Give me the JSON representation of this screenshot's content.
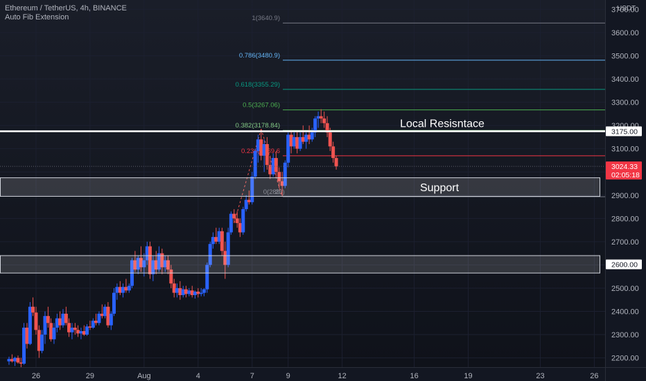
{
  "header": {
    "symbol_line": "Ethereum / TetherUS, 4h, BINANCE",
    "indicator": "Auto Fib Extension",
    "currency": "USDT"
  },
  "colors": {
    "background": "#131722",
    "bull": "#2962ff",
    "bear": "#ef5350",
    "grid": "#1c2030",
    "axis_text": "#b2b5be"
  },
  "chart_data": {
    "type": "candlestick",
    "title": "Ethereum / TetherUS, 4h, BINANCE",
    "y_axis": {
      "ticks": [
        2200,
        2300,
        2400,
        2500,
        2600,
        2700,
        2800,
        2900,
        3000,
        3100,
        3200,
        3300,
        3400,
        3500,
        3600,
        3700
      ],
      "tick_labels": [
        "2200.00",
        "2300.00",
        "2400.00",
        "2500.00",
        "2600.00",
        "2700.00",
        "2800.00",
        "2900.00",
        "3000.00",
        "3100.00",
        "3200.00",
        "3300.00",
        "3400.00",
        "3500.00",
        "3600.00",
        "3700.00"
      ],
      "range": [
        2160,
        3740
      ],
      "side": "right"
    },
    "x_axis": {
      "tick_labels": [
        "26",
        "29",
        "Aug",
        "4",
        "7",
        "9",
        "12",
        "16",
        "19",
        "23",
        "26"
      ],
      "tick_days": [
        -6,
        -3,
        0,
        3,
        6,
        8,
        11,
        15,
        18,
        22,
        25
      ],
      "range_days": [
        -8.0,
        25.6
      ]
    },
    "fib_levels": [
      {
        "label": "1(3640.9)",
        "ratio": 1,
        "value": 3640.9,
        "color": "#787b86"
      },
      {
        "label": "0.786(3480.9)",
        "ratio": 0.786,
        "value": 3480.9,
        "color": "#64b5f6"
      },
      {
        "label": "0.618(3355.29)",
        "ratio": 0.618,
        "value": 3355.29,
        "color": "#089981"
      },
      {
        "label": "0.5(3267.06)",
        "ratio": 0.5,
        "value": 3267.06,
        "color": "#4caf50"
      },
      {
        "label": "0.382(3178.84)",
        "ratio": 0.382,
        "value": 3178.84,
        "color": "#81c784"
      },
      {
        "label": "0.236(3069.6",
        "ratio": 0.236,
        "value": 3069.6,
        "color": "#f23645"
      },
      {
        "label": "0(289",
        "label_tail": "23)",
        "ratio": 0,
        "value": 2893.23,
        "color": "#787b86"
      }
    ],
    "annotations": [
      {
        "type": "hline",
        "value": 3175,
        "label": "Local Resisntace",
        "axis_label": "3175.00",
        "color": "#ffffff"
      },
      {
        "type": "zone",
        "low": 2895,
        "high": 2975,
        "label": "Support",
        "color": "#ffffff"
      },
      {
        "type": "zone",
        "low": 2565,
        "high": 2640,
        "label": "",
        "axis_label": "2600.00",
        "color": "#ffffff"
      }
    ],
    "last_price": {
      "value": 3024.33,
      "label": "3024.33",
      "countdown": "02:05:18",
      "color": "#f23645"
    },
    "candles": [
      {
        "t": -7.5,
        "o": 2185,
        "h": 2205,
        "l": 2170,
        "c": 2195
      },
      {
        "t": -7.33,
        "o": 2195,
        "h": 2215,
        "l": 2180,
        "c": 2185
      },
      {
        "t": -7.17,
        "o": 2185,
        "h": 2205,
        "l": 2165,
        "c": 2200
      },
      {
        "t": -7.0,
        "o": 2200,
        "h": 2210,
        "l": 2175,
        "c": 2180
      },
      {
        "t": -6.83,
        "o": 2180,
        "h": 2200,
        "l": 2160,
        "c": 2175
      },
      {
        "t": -6.67,
        "o": 2175,
        "h": 2350,
        "l": 2170,
        "c": 2330
      },
      {
        "t": -6.5,
        "o": 2330,
        "h": 2350,
        "l": 2240,
        "c": 2260
      },
      {
        "t": -6.33,
        "o": 2260,
        "h": 2440,
        "l": 2255,
        "c": 2420
      },
      {
        "t": -6.17,
        "o": 2420,
        "h": 2460,
        "l": 2380,
        "c": 2395
      },
      {
        "t": -6.0,
        "o": 2395,
        "h": 2420,
        "l": 2300,
        "c": 2320
      },
      {
        "t": -5.83,
        "o": 2320,
        "h": 2340,
        "l": 2200,
        "c": 2230
      },
      {
        "t": -5.67,
        "o": 2230,
        "h": 2320,
        "l": 2220,
        "c": 2300
      },
      {
        "t": -5.5,
        "o": 2300,
        "h": 2400,
        "l": 2260,
        "c": 2380
      },
      {
        "t": -5.33,
        "o": 2380,
        "h": 2420,
        "l": 2330,
        "c": 2350
      },
      {
        "t": -5.17,
        "o": 2350,
        "h": 2370,
        "l": 2270,
        "c": 2280
      },
      {
        "t": -5.0,
        "o": 2280,
        "h": 2350,
        "l": 2260,
        "c": 2330
      },
      {
        "t": -4.83,
        "o": 2330,
        "h": 2390,
        "l": 2310,
        "c": 2370
      },
      {
        "t": -4.67,
        "o": 2370,
        "h": 2400,
        "l": 2320,
        "c": 2340
      },
      {
        "t": -4.5,
        "o": 2340,
        "h": 2410,
        "l": 2330,
        "c": 2390
      },
      {
        "t": -4.33,
        "o": 2390,
        "h": 2420,
        "l": 2340,
        "c": 2350
      },
      {
        "t": -4.17,
        "o": 2350,
        "h": 2370,
        "l": 2290,
        "c": 2310
      },
      {
        "t": -4.0,
        "o": 2310,
        "h": 2350,
        "l": 2280,
        "c": 2330
      },
      {
        "t": -3.83,
        "o": 2330,
        "h": 2350,
        "l": 2300,
        "c": 2320
      },
      {
        "t": -3.67,
        "o": 2320,
        "h": 2340,
        "l": 2290,
        "c": 2305
      },
      {
        "t": -3.5,
        "o": 2305,
        "h": 2330,
        "l": 2280,
        "c": 2315
      },
      {
        "t": -3.33,
        "o": 2315,
        "h": 2340,
        "l": 2295,
        "c": 2300
      },
      {
        "t": -3.17,
        "o": 2300,
        "h": 2345,
        "l": 2295,
        "c": 2335
      },
      {
        "t": -3.0,
        "o": 2335,
        "h": 2360,
        "l": 2320,
        "c": 2330
      },
      {
        "t": -2.83,
        "o": 2330,
        "h": 2370,
        "l": 2325,
        "c": 2360
      },
      {
        "t": -2.67,
        "o": 2360,
        "h": 2390,
        "l": 2340,
        "c": 2350
      },
      {
        "t": -2.5,
        "o": 2350,
        "h": 2400,
        "l": 2340,
        "c": 2390
      },
      {
        "t": -2.33,
        "o": 2390,
        "h": 2430,
        "l": 2370,
        "c": 2380
      },
      {
        "t": -2.17,
        "o": 2380,
        "h": 2430,
        "l": 2370,
        "c": 2420
      },
      {
        "t": -2.0,
        "o": 2420,
        "h": 2440,
        "l": 2330,
        "c": 2340
      },
      {
        "t": -1.83,
        "o": 2340,
        "h": 2400,
        "l": 2320,
        "c": 2390
      },
      {
        "t": -1.67,
        "o": 2390,
        "h": 2500,
        "l": 2380,
        "c": 2480
      },
      {
        "t": -1.5,
        "o": 2480,
        "h": 2520,
        "l": 2450,
        "c": 2505
      },
      {
        "t": -1.33,
        "o": 2505,
        "h": 2530,
        "l": 2470,
        "c": 2480
      },
      {
        "t": -1.17,
        "o": 2480,
        "h": 2520,
        "l": 2460,
        "c": 2505
      },
      {
        "t": -1.0,
        "o": 2505,
        "h": 2540,
        "l": 2480,
        "c": 2490
      },
      {
        "t": -0.83,
        "o": 2490,
        "h": 2520,
        "l": 2480,
        "c": 2510
      },
      {
        "t": -0.67,
        "o": 2510,
        "h": 2630,
        "l": 2500,
        "c": 2620
      },
      {
        "t": -0.5,
        "o": 2620,
        "h": 2660,
        "l": 2570,
        "c": 2580
      },
      {
        "t": -0.33,
        "o": 2580,
        "h": 2640,
        "l": 2560,
        "c": 2630
      },
      {
        "t": -0.17,
        "o": 2630,
        "h": 2680,
        "l": 2570,
        "c": 2590
      },
      {
        "t": 0.0,
        "o": 2590,
        "h": 2650,
        "l": 2550,
        "c": 2620
      },
      {
        "t": 0.17,
        "o": 2620,
        "h": 2700,
        "l": 2600,
        "c": 2680
      },
      {
        "t": 0.33,
        "o": 2680,
        "h": 2700,
        "l": 2540,
        "c": 2560
      },
      {
        "t": 0.5,
        "o": 2560,
        "h": 2640,
        "l": 2530,
        "c": 2620
      },
      {
        "t": 0.67,
        "o": 2620,
        "h": 2660,
        "l": 2560,
        "c": 2580
      },
      {
        "t": 0.83,
        "o": 2580,
        "h": 2680,
        "l": 2570,
        "c": 2650
      },
      {
        "t": 1.0,
        "o": 2650,
        "h": 2670,
        "l": 2560,
        "c": 2590
      },
      {
        "t": 1.17,
        "o": 2590,
        "h": 2640,
        "l": 2570,
        "c": 2620
      },
      {
        "t": 1.33,
        "o": 2620,
        "h": 2640,
        "l": 2560,
        "c": 2580
      },
      {
        "t": 1.5,
        "o": 2580,
        "h": 2600,
        "l": 2500,
        "c": 2520
      },
      {
        "t": 1.67,
        "o": 2520,
        "h": 2540,
        "l": 2460,
        "c": 2480
      },
      {
        "t": 1.83,
        "o": 2480,
        "h": 2520,
        "l": 2460,
        "c": 2500
      },
      {
        "t": 2.0,
        "o": 2500,
        "h": 2530,
        "l": 2450,
        "c": 2470
      },
      {
        "t": 2.17,
        "o": 2470,
        "h": 2510,
        "l": 2460,
        "c": 2495
      },
      {
        "t": 2.33,
        "o": 2495,
        "h": 2510,
        "l": 2460,
        "c": 2475
      },
      {
        "t": 2.5,
        "o": 2475,
        "h": 2500,
        "l": 2465,
        "c": 2490
      },
      {
        "t": 2.67,
        "o": 2490,
        "h": 2510,
        "l": 2460,
        "c": 2470
      },
      {
        "t": 2.83,
        "o": 2470,
        "h": 2490,
        "l": 2455,
        "c": 2485
      },
      {
        "t": 3.0,
        "o": 2485,
        "h": 2500,
        "l": 2460,
        "c": 2475
      },
      {
        "t": 3.17,
        "o": 2475,
        "h": 2500,
        "l": 2465,
        "c": 2480
      },
      {
        "t": 3.33,
        "o": 2480,
        "h": 2500,
        "l": 2465,
        "c": 2495
      },
      {
        "t": 3.5,
        "o": 2495,
        "h": 2610,
        "l": 2480,
        "c": 2600
      },
      {
        "t": 3.67,
        "o": 2600,
        "h": 2700,
        "l": 2590,
        "c": 2690
      },
      {
        "t": 3.83,
        "o": 2690,
        "h": 2740,
        "l": 2670,
        "c": 2720
      },
      {
        "t": 4.0,
        "o": 2720,
        "h": 2760,
        "l": 2690,
        "c": 2700
      },
      {
        "t": 4.17,
        "o": 2700,
        "h": 2760,
        "l": 2690,
        "c": 2745
      },
      {
        "t": 4.33,
        "o": 2745,
        "h": 2760,
        "l": 2640,
        "c": 2660
      },
      {
        "t": 4.5,
        "o": 2660,
        "h": 2700,
        "l": 2540,
        "c": 2600
      },
      {
        "t": 4.67,
        "o": 2600,
        "h": 2760,
        "l": 2590,
        "c": 2740
      },
      {
        "t": 4.83,
        "o": 2740,
        "h": 2830,
        "l": 2730,
        "c": 2820
      },
      {
        "t": 5.0,
        "o": 2820,
        "h": 2840,
        "l": 2780,
        "c": 2800
      },
      {
        "t": 5.17,
        "o": 2800,
        "h": 2830,
        "l": 2760,
        "c": 2780
      },
      {
        "t": 5.33,
        "o": 2780,
        "h": 2800,
        "l": 2720,
        "c": 2740
      },
      {
        "t": 5.5,
        "o": 2740,
        "h": 2850,
        "l": 2730,
        "c": 2840
      },
      {
        "t": 5.67,
        "o": 2840,
        "h": 2900,
        "l": 2830,
        "c": 2880
      },
      {
        "t": 5.83,
        "o": 2880,
        "h": 2920,
        "l": 2860,
        "c": 2870
      },
      {
        "t": 6.0,
        "o": 2870,
        "h": 3000,
        "l": 2860,
        "c": 2980
      },
      {
        "t": 6.17,
        "o": 2980,
        "h": 3100,
        "l": 2970,
        "c": 3090
      },
      {
        "t": 6.33,
        "o": 3090,
        "h": 3160,
        "l": 3040,
        "c": 3140
      },
      {
        "t": 6.5,
        "o": 3140,
        "h": 3180,
        "l": 3050,
        "c": 3070
      },
      {
        "t": 6.67,
        "o": 3070,
        "h": 3140,
        "l": 3000,
        "c": 3120
      },
      {
        "t": 6.83,
        "o": 3120,
        "h": 3150,
        "l": 3010,
        "c": 3030
      },
      {
        "t": 7.0,
        "o": 3030,
        "h": 3070,
        "l": 2970,
        "c": 2990
      },
      {
        "t": 7.17,
        "o": 2990,
        "h": 3080,
        "l": 2980,
        "c": 3060
      },
      {
        "t": 7.33,
        "o": 3060,
        "h": 3090,
        "l": 2980,
        "c": 3000
      },
      {
        "t": 7.5,
        "o": 3000,
        "h": 3020,
        "l": 2930,
        "c": 2960
      },
      {
        "t": 7.67,
        "o": 2960,
        "h": 3000,
        "l": 2895,
        "c": 2940
      },
      {
        "t": 7.83,
        "o": 2940,
        "h": 3050,
        "l": 2930,
        "c": 3040
      },
      {
        "t": 8.0,
        "o": 3040,
        "h": 3170,
        "l": 3020,
        "c": 3160
      },
      {
        "t": 8.17,
        "o": 3160,
        "h": 3180,
        "l": 3080,
        "c": 3110
      },
      {
        "t": 8.33,
        "o": 3110,
        "h": 3170,
        "l": 3100,
        "c": 3150
      },
      {
        "t": 8.5,
        "o": 3150,
        "h": 3175,
        "l": 3080,
        "c": 3100
      },
      {
        "t": 8.67,
        "o": 3100,
        "h": 3170,
        "l": 3090,
        "c": 3150
      },
      {
        "t": 8.83,
        "o": 3150,
        "h": 3200,
        "l": 3120,
        "c": 3130
      },
      {
        "t": 9.0,
        "o": 3130,
        "h": 3170,
        "l": 3100,
        "c": 3160
      },
      {
        "t": 9.17,
        "o": 3160,
        "h": 3200,
        "l": 3120,
        "c": 3140
      },
      {
        "t": 9.33,
        "o": 3140,
        "h": 3190,
        "l": 3130,
        "c": 3170
      },
      {
        "t": 9.5,
        "o": 3170,
        "h": 3240,
        "l": 3150,
        "c": 3230
      },
      {
        "t": 9.67,
        "o": 3230,
        "h": 3260,
        "l": 3190,
        "c": 3240
      },
      {
        "t": 9.83,
        "o": 3240,
        "h": 3270,
        "l": 3210,
        "c": 3230
      },
      {
        "t": 10.0,
        "o": 3230,
        "h": 3260,
        "l": 3190,
        "c": 3210
      },
      {
        "t": 10.17,
        "o": 3210,
        "h": 3240,
        "l": 3150,
        "c": 3170
      },
      {
        "t": 10.33,
        "o": 3170,
        "h": 3190,
        "l": 3090,
        "c": 3110
      },
      {
        "t": 10.5,
        "o": 3110,
        "h": 3130,
        "l": 3040,
        "c": 3060
      },
      {
        "t": 10.67,
        "o": 3060,
        "h": 3070,
        "l": 3010,
        "c": 3024
      }
    ]
  }
}
